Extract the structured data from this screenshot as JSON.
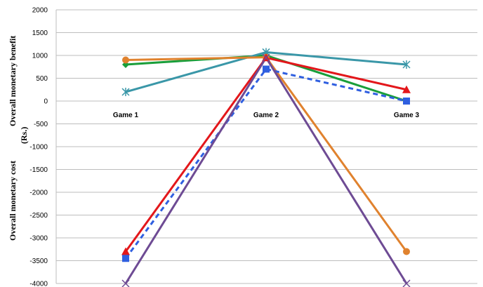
{
  "chart_data": {
    "type": "line",
    "categories": [
      "Game 1",
      "Game 2",
      "Game 3"
    ],
    "ylim": [
      -4000,
      2000
    ],
    "yticks": [
      2000,
      1500,
      1000,
      500,
      0,
      -500,
      -1000,
      -1500,
      -2000,
      -2500,
      -3000,
      -3500,
      -4000
    ],
    "ylabel_top": "Overall monetary benefit",
    "ylabel_unit": "(Rs.)",
    "ylabel_bottom": "Overall monetary cost",
    "grid": true,
    "series": [
      {
        "values": [
          800,
          1000,
          0
        ],
        "color": "#1a9e3a",
        "marker": "diamond",
        "dash": false
      },
      {
        "values": [
          200,
          1070,
          800
        ],
        "color": "#3a97a8",
        "marker": "star",
        "dash": false
      },
      {
        "values": [
          900,
          960,
          -3300
        ],
        "color": "#e0822e",
        "marker": "circle",
        "dash": false
      },
      {
        "values": [
          -3300,
          950,
          250
        ],
        "color": "#e3171b",
        "marker": "triangle",
        "dash": false
      },
      {
        "values": [
          -3450,
          700,
          0
        ],
        "color": "#2f5fe0",
        "marker": "square",
        "dash": true
      },
      {
        "values": [
          -4000,
          950,
          -4000
        ],
        "color": "#6e4b94",
        "marker": "x",
        "dash": false
      }
    ]
  }
}
